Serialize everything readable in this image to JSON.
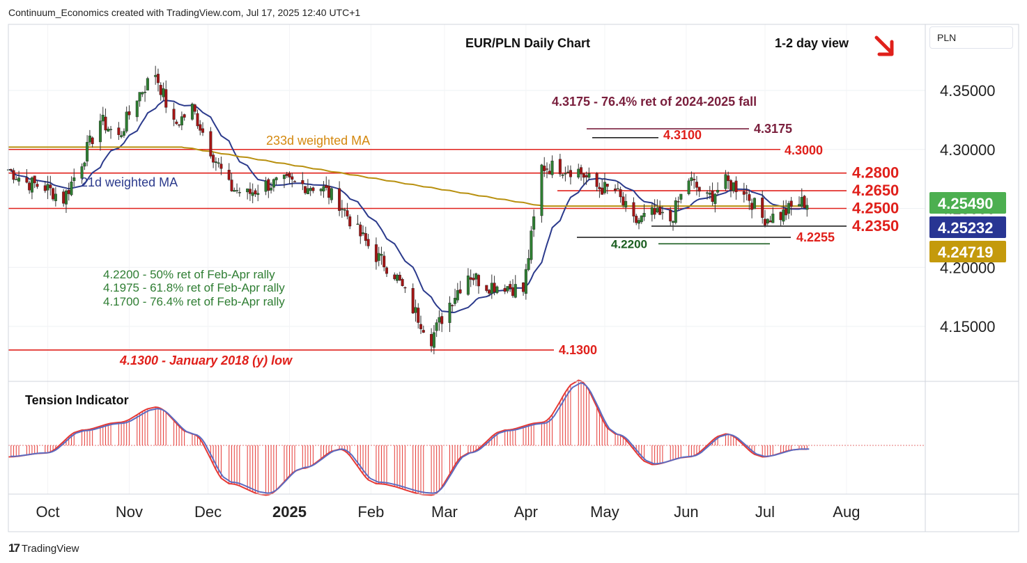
{
  "header": {
    "attribution": "Continuum_Economics created with TradingView.com, Jul 17, 2025 12:40 UTC+1"
  },
  "footer": {
    "logo_mark": "17",
    "logo_text": "TradingView"
  },
  "currency_label": "PLN",
  "chart_data": [
    {
      "type": "candlestick",
      "title": "EUR/PLN Daily Chart",
      "view_label": "1-2 day view",
      "view_icon": "arrow-down-right-icon",
      "y_axis": {
        "ticks": [
          "4.15000",
          "4.20000",
          "4.25000",
          "4.30000",
          "4.35000"
        ],
        "ylim": [
          4.105,
          4.405
        ]
      },
      "x_axis": {
        "ticks": [
          "Oct",
          "Nov",
          "Dec",
          "2025",
          "Feb",
          "Mar",
          "Apr",
          "May",
          "Jun",
          "Jul",
          "Aug"
        ],
        "start": "2024-09-16",
        "end": "2025-08-31"
      },
      "price_tags": [
        {
          "value": "4.25490",
          "color": "#4caf50"
        },
        {
          "value": "4.25232",
          "color": "#283593"
        },
        {
          "value": "4.24719",
          "color": "#c49a0c"
        }
      ],
      "levels": [
        {
          "value": 4.3,
          "label": "4.3000"
        },
        {
          "value": 4.28,
          "label": "4.2800"
        },
        {
          "value": 4.265,
          "label": "4.2650"
        },
        {
          "value": 4.25,
          "label": "4.2500"
        },
        {
          "value": 4.235,
          "label": "4.2350"
        },
        {
          "value": 4.2255,
          "label": "4.2255"
        },
        {
          "value": 4.31,
          "label": "4.3100"
        },
        {
          "value": 4.3175,
          "label": "4.3175"
        },
        {
          "value": 4.22,
          "label": "4.2200"
        },
        {
          "value": 4.13,
          "label": "4.1300"
        }
      ],
      "annotations": {
        "fib_2024": "4.3175 - 76.4% ret of 2024-2025 fall",
        "ma233": "233d weighted MA",
        "ma21": "21d weighted MA",
        "ret50": "4.2200 - 50% ret of Feb-Apr rally",
        "ret618": "4.1975 - 61.8% ret of Feb-Apr rally",
        "ret764": "4.1700 - 76.4% ret of Feb-Apr rally",
        "low2018": "4.1300 - January 2018 (y) low"
      },
      "series": [
        {
          "name": "EUR/PLN",
          "points": [
            {
              "x": "2024-09-16",
              "y": 4.283
            },
            {
              "x": "2024-09-23",
              "y": 4.272
            },
            {
              "x": "2024-09-30",
              "y": 4.268
            },
            {
              "x": "2024-10-07",
              "y": 4.258
            },
            {
              "x": "2024-10-14",
              "y": 4.29
            },
            {
              "x": "2024-10-21",
              "y": 4.325
            },
            {
              "x": "2024-10-28",
              "y": 4.31
            },
            {
              "x": "2024-11-04",
              "y": 4.345
            },
            {
              "x": "2024-11-11",
              "y": 4.365
            },
            {
              "x": "2024-11-18",
              "y": 4.32
            },
            {
              "x": "2024-11-25",
              "y": 4.335
            },
            {
              "x": "2024-12-02",
              "y": 4.3
            },
            {
              "x": "2024-12-09",
              "y": 4.268
            },
            {
              "x": "2024-12-16",
              "y": 4.262
            },
            {
              "x": "2024-12-23",
              "y": 4.27
            },
            {
              "x": "2024-12-30",
              "y": 4.272
            },
            {
              "x": "2025-01-06",
              "y": 4.27
            },
            {
              "x": "2025-01-13",
              "y": 4.268
            },
            {
              "x": "2025-01-20",
              "y": 4.255
            },
            {
              "x": "2025-01-27",
              "y": 4.23
            },
            {
              "x": "2025-02-03",
              "y": 4.21
            },
            {
              "x": "2025-02-10",
              "y": 4.195
            },
            {
              "x": "2025-02-17",
              "y": 4.165
            },
            {
              "x": "2025-02-24",
              "y": 4.14
            },
            {
              "x": "2025-03-03",
              "y": 4.17
            },
            {
              "x": "2025-03-10",
              "y": 4.195
            },
            {
              "x": "2025-03-17",
              "y": 4.185
            },
            {
              "x": "2025-03-24",
              "y": 4.185
            },
            {
              "x": "2025-03-31",
              "y": 4.18
            },
            {
              "x": "2025-04-07",
              "y": 4.285
            },
            {
              "x": "2025-04-14",
              "y": 4.285
            },
            {
              "x": "2025-04-21",
              "y": 4.282
            },
            {
              "x": "2025-04-28",
              "y": 4.268
            },
            {
              "x": "2025-05-05",
              "y": 4.265
            },
            {
              "x": "2025-05-12",
              "y": 4.238
            },
            {
              "x": "2025-05-19",
              "y": 4.245
            },
            {
              "x": "2025-05-26",
              "y": 4.24
            },
            {
              "x": "2025-06-02",
              "y": 4.275
            },
            {
              "x": "2025-06-09",
              "y": 4.258
            },
            {
              "x": "2025-06-16",
              "y": 4.272
            },
            {
              "x": "2025-06-23",
              "y": 4.266
            },
            {
              "x": "2025-06-30",
              "y": 4.242
            },
            {
              "x": "2025-07-07",
              "y": 4.244
            },
            {
              "x": "2025-07-14",
              "y": 4.2549
            }
          ]
        }
      ],
      "indicator": {
        "title": "Tension Indicator",
        "points": [
          {
            "x": "2024-09-16",
            "y": -0.3
          },
          {
            "x": "2024-09-30",
            "y": -0.2
          },
          {
            "x": "2024-10-14",
            "y": 0.4
          },
          {
            "x": "2024-10-28",
            "y": 0.6
          },
          {
            "x": "2024-11-11",
            "y": 1.0
          },
          {
            "x": "2024-11-25",
            "y": 0.3
          },
          {
            "x": "2024-12-09",
            "y": -1.0
          },
          {
            "x": "2024-12-23",
            "y": -1.3
          },
          {
            "x": "2025-01-06",
            "y": -0.6
          },
          {
            "x": "2025-01-20",
            "y": -0.1
          },
          {
            "x": "2025-02-03",
            "y": -1.0
          },
          {
            "x": "2025-02-24",
            "y": -1.3
          },
          {
            "x": "2025-03-10",
            "y": -0.2
          },
          {
            "x": "2025-03-24",
            "y": 0.4
          },
          {
            "x": "2025-04-07",
            "y": 0.6
          },
          {
            "x": "2025-04-21",
            "y": 1.7
          },
          {
            "x": "2025-05-05",
            "y": 0.3
          },
          {
            "x": "2025-05-19",
            "y": -0.5
          },
          {
            "x": "2025-06-02",
            "y": -0.3
          },
          {
            "x": "2025-06-16",
            "y": 0.3
          },
          {
            "x": "2025-06-30",
            "y": -0.3
          },
          {
            "x": "2025-07-14",
            "y": -0.1
          }
        ]
      }
    }
  ]
}
